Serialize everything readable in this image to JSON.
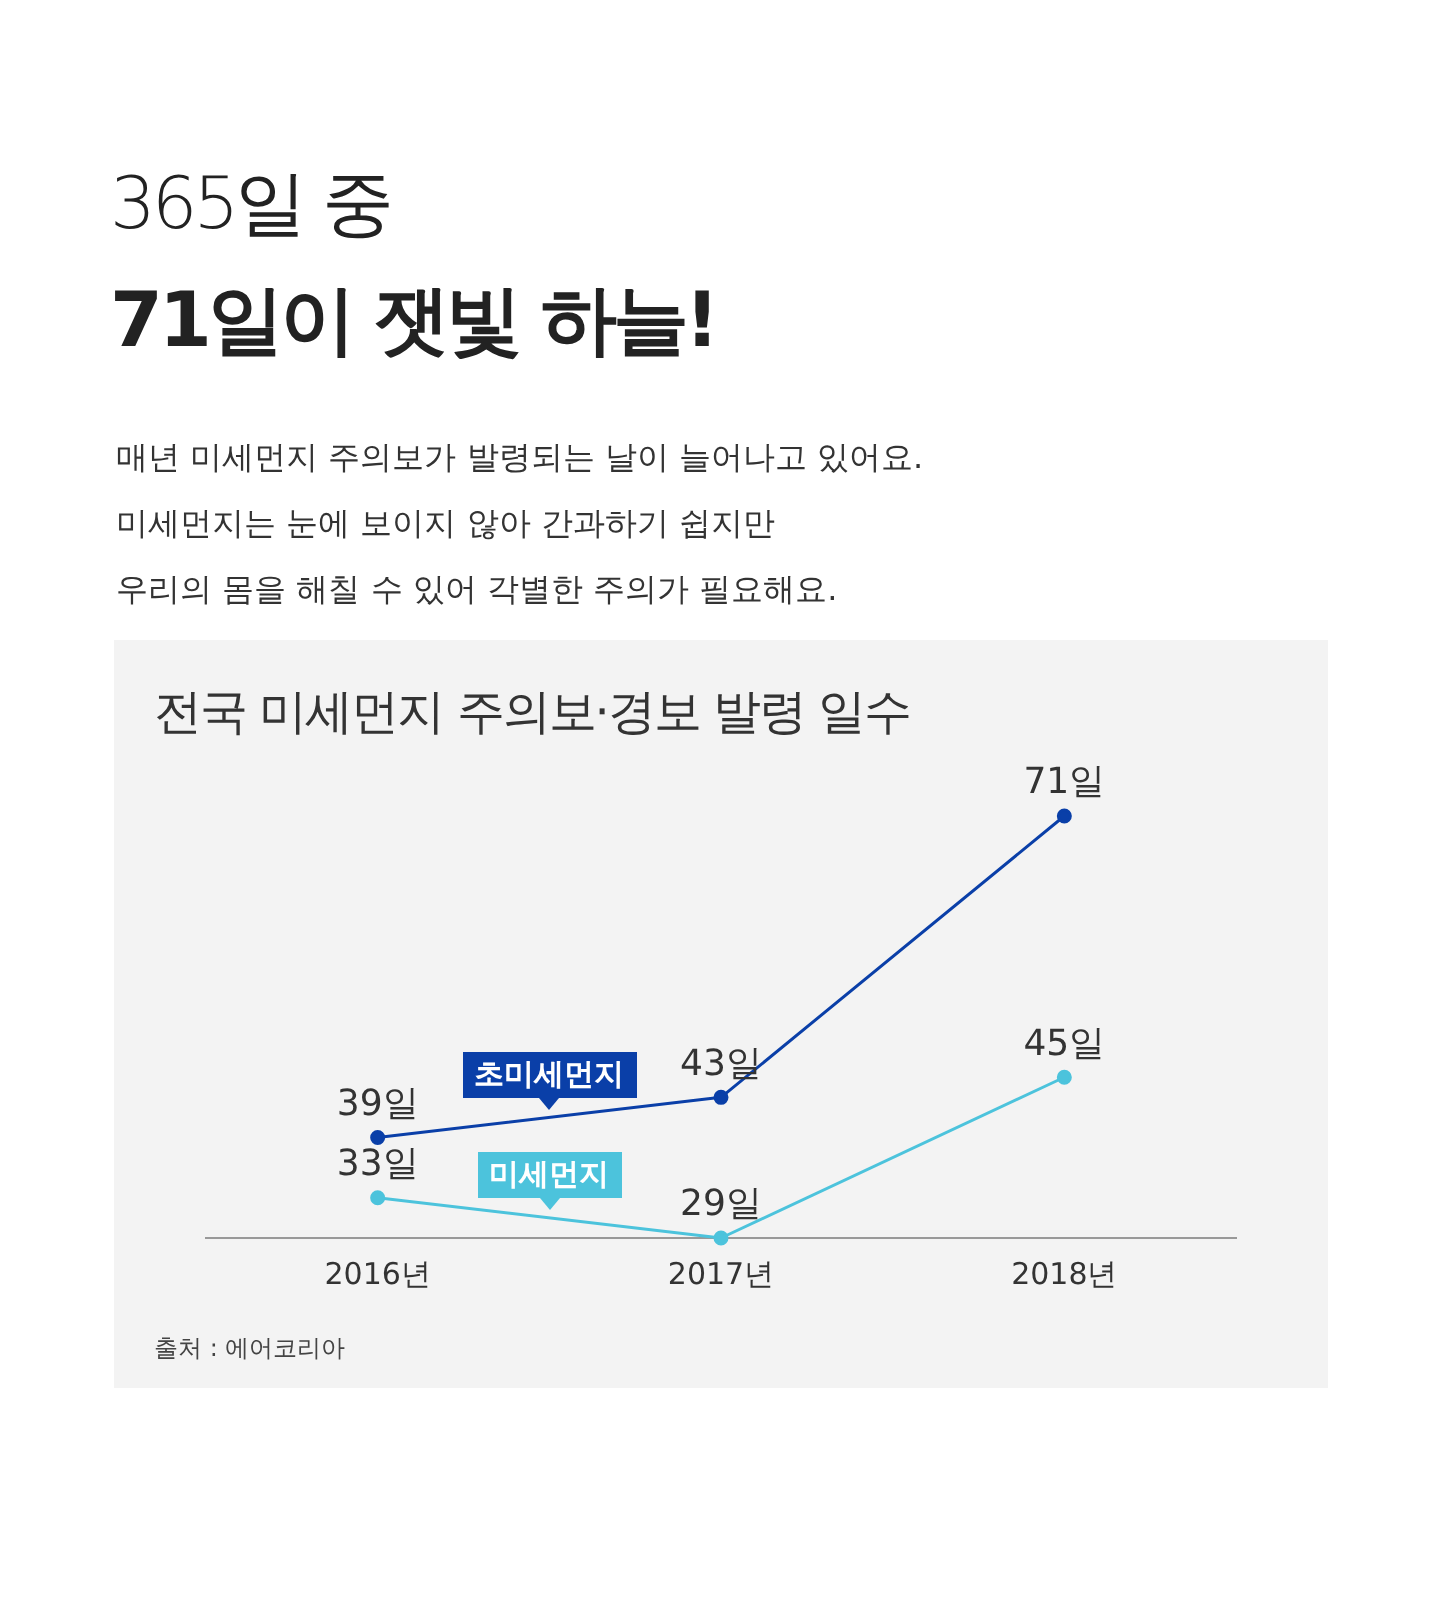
{
  "chart_data": {
    "type": "line",
    "title": "전국 미세먼지 주의보·경보 발령 일수",
    "subtitle": "매년 미세먼지 주의보가 발령되는 날이 늘어나고 있어요.\n미세먼지는 눈에 보이지 않아 간과하기 쉽지만\n우리의 몸을 해칠 수 있어 각별한 주의가 필요해요.",
    "annotations": [
      "365일 중",
      "71일이 잿빛 하늘!",
      "출처 : 에어코리아"
    ],
    "categories": [
      "2016년",
      "2017년",
      "2018년"
    ],
    "series": [
      {
        "name": "초미세먼지",
        "color": "#0a3fa8",
        "values": [
          39,
          43,
          71
        ],
        "value_labels": [
          "39일",
          "43일",
          "71일"
        ]
      },
      {
        "name": "미세먼지",
        "color": "#4cc3dc",
        "values": [
          33,
          29,
          45
        ],
        "value_labels": [
          "33일",
          "29일",
          "45일"
        ]
      }
    ],
    "marker": "circle",
    "grid": false,
    "legend": false
  }
}
